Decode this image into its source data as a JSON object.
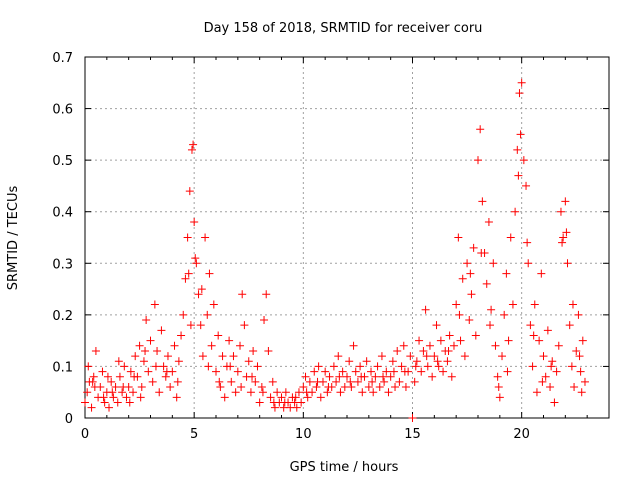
{
  "chart_data": {
    "type": "scatter",
    "title": "Day 158 of 2018, SRMTID for receiver coru",
    "xlabel": "GPS time / hours",
    "ylabel": "SRMTID / TECUs",
    "xlim": [
      0,
      24
    ],
    "ylim": [
      0,
      0.7
    ],
    "grid": true,
    "marker": "+",
    "color": "#ff0000",
    "xticks": [
      0,
      5,
      10,
      15,
      20
    ],
    "xtick_labels": [
      "0",
      "5",
      "10",
      "15",
      "20"
    ],
    "yticks": [
      0,
      0.1,
      0.2,
      0.3,
      0.4,
      0.5,
      0.6,
      0.7
    ],
    "ytick_labels": [
      "0",
      "0.1",
      "0.2",
      "0.3",
      "0.4",
      "0.5",
      "0.6",
      "0.7"
    ],
    "series": [
      {
        "name": "SRMTID",
        "points": [
          [
            0.0,
            0.03
          ],
          [
            0.1,
            0.05
          ],
          [
            0.2,
            0.07
          ],
          [
            0.3,
            0.02
          ],
          [
            0.4,
            0.08
          ],
          [
            0.5,
            0.13
          ],
          [
            0.6,
            0.04
          ],
          [
            0.7,
            0.06
          ],
          [
            0.8,
            0.09
          ],
          [
            0.9,
            0.03
          ],
          [
            1.0,
            0.05
          ],
          [
            1.1,
            0.02
          ],
          [
            1.2,
            0.07
          ],
          [
            1.3,
            0.04
          ],
          [
            1.4,
            0.06
          ],
          [
            1.5,
            0.03
          ],
          [
            1.6,
            0.08
          ],
          [
            1.7,
            0.05
          ],
          [
            1.8,
            0.1
          ],
          [
            1.9,
            0.04
          ],
          [
            2.0,
            0.06
          ],
          [
            2.1,
            0.09
          ],
          [
            2.2,
            0.05
          ],
          [
            2.3,
            0.12
          ],
          [
            2.4,
            0.08
          ],
          [
            2.5,
            0.14
          ],
          [
            2.6,
            0.06
          ],
          [
            2.7,
            0.11
          ],
          [
            2.8,
            0.19
          ],
          [
            2.9,
            0.09
          ],
          [
            3.0,
            0.15
          ],
          [
            3.1,
            0.07
          ],
          [
            3.2,
            0.22
          ],
          [
            3.3,
            0.13
          ],
          [
            3.4,
            0.05
          ],
          [
            3.5,
            0.17
          ],
          [
            3.6,
            0.1
          ],
          [
            3.7,
            0.08
          ],
          [
            3.8,
            0.12
          ],
          [
            3.9,
            0.06
          ],
          [
            4.0,
            0.09
          ],
          [
            4.1,
            0.14
          ],
          [
            4.2,
            0.04
          ],
          [
            4.3,
            0.11
          ],
          [
            4.4,
            0.16
          ],
          [
            4.5,
            0.2
          ],
          [
            4.6,
            0.27
          ],
          [
            4.7,
            0.35
          ],
          [
            4.8,
            0.44
          ],
          [
            4.9,
            0.52
          ],
          [
            5.0,
            0.38
          ],
          [
            5.1,
            0.3
          ],
          [
            5.2,
            0.24
          ],
          [
            5.3,
            0.18
          ],
          [
            5.4,
            0.12
          ],
          [
            5.5,
            0.35
          ],
          [
            5.6,
            0.2
          ],
          [
            5.7,
            0.28
          ],
          [
            5.8,
            0.14
          ],
          [
            5.9,
            0.22
          ],
          [
            6.0,
            0.09
          ],
          [
            6.1,
            0.16
          ],
          [
            6.2,
            0.06
          ],
          [
            6.3,
            0.12
          ],
          [
            6.4,
            0.04
          ],
          [
            6.5,
            0.1
          ],
          [
            6.6,
            0.15
          ],
          [
            6.7,
            0.07
          ],
          [
            6.8,
            0.12
          ],
          [
            6.9,
            0.05
          ],
          [
            7.0,
            0.09
          ],
          [
            7.1,
            0.14
          ],
          [
            7.2,
            0.24
          ],
          [
            7.3,
            0.18
          ],
          [
            7.4,
            0.08
          ],
          [
            7.5,
            0.11
          ],
          [
            7.6,
            0.05
          ],
          [
            7.7,
            0.13
          ],
          [
            7.8,
            0.07
          ],
          [
            7.9,
            0.1
          ],
          [
            8.0,
            0.03
          ],
          [
            8.1,
            0.06
          ],
          [
            8.2,
            0.19
          ],
          [
            8.3,
            0.24
          ],
          [
            8.4,
            0.13
          ],
          [
            8.5,
            0.04
          ],
          [
            8.6,
            0.07
          ],
          [
            8.7,
            0.02
          ],
          [
            8.8,
            0.05
          ],
          [
            8.9,
            0.03
          ],
          [
            9.0,
            0.04
          ],
          [
            9.1,
            0.02
          ],
          [
            9.2,
            0.05
          ],
          [
            9.3,
            0.03
          ],
          [
            9.4,
            0.02
          ],
          [
            9.5,
            0.04
          ],
          [
            9.6,
            0.03
          ],
          [
            9.7,
            0.02
          ],
          [
            9.8,
            0.05
          ],
          [
            9.9,
            0.03
          ],
          [
            10.0,
            0.06
          ],
          [
            10.1,
            0.08
          ],
          [
            10.2,
            0.04
          ],
          [
            10.3,
            0.07
          ],
          [
            10.4,
            0.05
          ],
          [
            10.5,
            0.09
          ],
          [
            10.6,
            0.06
          ],
          [
            10.7,
            0.1
          ],
          [
            10.8,
            0.04
          ],
          [
            10.9,
            0.07
          ],
          [
            11.0,
            0.09
          ],
          [
            11.1,
            0.05
          ],
          [
            11.2,
            0.08
          ],
          [
            11.3,
            0.06
          ],
          [
            11.4,
            0.1
          ],
          [
            11.5,
            0.07
          ],
          [
            11.6,
            0.12
          ],
          [
            11.7,
            0.05
          ],
          [
            11.8,
            0.09
          ],
          [
            11.9,
            0.06
          ],
          [
            12.0,
            0.08
          ],
          [
            12.1,
            0.11
          ],
          [
            12.2,
            0.06
          ],
          [
            12.3,
            0.14
          ],
          [
            12.4,
            0.09
          ],
          [
            12.5,
            0.07
          ],
          [
            12.6,
            0.1
          ],
          [
            12.7,
            0.05
          ],
          [
            12.8,
            0.08
          ],
          [
            12.9,
            0.11
          ],
          [
            13.0,
            0.06
          ],
          [
            13.1,
            0.09
          ],
          [
            13.2,
            0.05
          ],
          [
            13.3,
            0.08
          ],
          [
            13.4,
            0.1
          ],
          [
            13.5,
            0.06
          ],
          [
            13.6,
            0.12
          ],
          [
            13.7,
            0.07
          ],
          [
            13.8,
            0.09
          ],
          [
            13.9,
            0.05
          ],
          [
            14.0,
            0.08
          ],
          [
            14.1,
            0.11
          ],
          [
            14.2,
            0.06
          ],
          [
            14.3,
            0.13
          ],
          [
            14.4,
            0.07
          ],
          [
            14.5,
            0.1
          ],
          [
            14.6,
            0.14
          ],
          [
            14.7,
            0.06
          ],
          [
            14.8,
            0.09
          ],
          [
            14.9,
            0.12
          ],
          [
            15.0,
            0.0
          ],
          [
            15.1,
            0.07
          ],
          [
            15.2,
            0.11
          ],
          [
            15.3,
            0.15
          ],
          [
            15.4,
            0.09
          ],
          [
            15.5,
            0.13
          ],
          [
            15.6,
            0.21
          ],
          [
            15.7,
            0.1
          ],
          [
            15.8,
            0.14
          ],
          [
            15.9,
            0.08
          ],
          [
            16.0,
            0.12
          ],
          [
            16.1,
            0.18
          ],
          [
            16.2,
            0.1
          ],
          [
            16.3,
            0.15
          ],
          [
            16.4,
            0.09
          ],
          [
            16.5,
            0.13
          ],
          [
            16.6,
            0.11
          ],
          [
            16.7,
            0.16
          ],
          [
            16.8,
            0.08
          ],
          [
            16.9,
            0.14
          ],
          [
            17.0,
            0.22
          ],
          [
            17.1,
            0.35
          ],
          [
            17.2,
            0.15
          ],
          [
            17.3,
            0.27
          ],
          [
            17.4,
            0.12
          ],
          [
            17.5,
            0.3
          ],
          [
            17.6,
            0.19
          ],
          [
            17.7,
            0.24
          ],
          [
            17.8,
            0.33
          ],
          [
            17.9,
            0.16
          ],
          [
            18.0,
            0.5
          ],
          [
            18.1,
            0.56
          ],
          [
            18.2,
            0.42
          ],
          [
            18.3,
            0.32
          ],
          [
            18.4,
            0.26
          ],
          [
            18.5,
            0.38
          ],
          [
            18.6,
            0.21
          ],
          [
            18.7,
            0.3
          ],
          [
            18.8,
            0.14
          ],
          [
            18.9,
            0.08
          ],
          [
            19.0,
            0.04
          ],
          [
            19.1,
            0.12
          ],
          [
            19.2,
            0.2
          ],
          [
            19.3,
            0.28
          ],
          [
            19.4,
            0.15
          ],
          [
            19.5,
            0.35
          ],
          [
            19.6,
            0.22
          ],
          [
            19.7,
            0.4
          ],
          [
            19.8,
            0.52
          ],
          [
            19.9,
            0.63
          ],
          [
            20.0,
            0.65
          ],
          [
            20.1,
            0.5
          ],
          [
            20.2,
            0.45
          ],
          [
            20.3,
            0.3
          ],
          [
            20.4,
            0.18
          ],
          [
            20.5,
            0.1
          ],
          [
            20.6,
            0.22
          ],
          [
            20.7,
            0.05
          ],
          [
            20.8,
            0.15
          ],
          [
            20.9,
            0.28
          ],
          [
            21.0,
            0.12
          ],
          [
            21.1,
            0.08
          ],
          [
            21.2,
            0.17
          ],
          [
            21.3,
            0.06
          ],
          [
            21.4,
            0.11
          ],
          [
            21.5,
            0.03
          ],
          [
            21.6,
            0.09
          ],
          [
            21.7,
            0.14
          ],
          [
            21.8,
            0.4
          ],
          [
            21.9,
            0.35
          ],
          [
            22.0,
            0.42
          ],
          [
            22.1,
            0.3
          ],
          [
            22.2,
            0.18
          ],
          [
            22.3,
            0.1
          ],
          [
            22.4,
            0.06
          ],
          [
            22.5,
            0.13
          ],
          [
            22.6,
            0.2
          ],
          [
            22.7,
            0.09
          ],
          [
            22.8,
            0.15
          ],
          [
            22.9,
            0.07
          ],
          [
            0.35,
            0.07
          ],
          [
            0.85,
            0.04
          ],
          [
            1.25,
            0.05
          ],
          [
            1.75,
            0.06
          ],
          [
            2.25,
            0.08
          ],
          [
            2.75,
            0.13
          ],
          [
            3.25,
            0.1
          ],
          [
            3.75,
            0.09
          ],
          [
            4.25,
            0.07
          ],
          [
            4.75,
            0.28
          ],
          [
            4.85,
            0.18
          ],
          [
            4.95,
            0.53
          ],
          [
            5.05,
            0.31
          ],
          [
            5.35,
            0.25
          ],
          [
            5.65,
            0.1
          ],
          [
            6.15,
            0.07
          ],
          [
            6.65,
            0.1
          ],
          [
            7.15,
            0.06
          ],
          [
            7.65,
            0.08
          ],
          [
            8.15,
            0.05
          ],
          [
            8.65,
            0.03
          ],
          [
            9.15,
            0.03
          ],
          [
            9.65,
            0.04
          ],
          [
            10.15,
            0.05
          ],
          [
            10.65,
            0.07
          ],
          [
            11.15,
            0.06
          ],
          [
            11.65,
            0.08
          ],
          [
            12.15,
            0.07
          ],
          [
            12.65,
            0.08
          ],
          [
            13.15,
            0.07
          ],
          [
            13.65,
            0.08
          ],
          [
            14.15,
            0.09
          ],
          [
            14.65,
            0.09
          ],
          [
            15.15,
            0.1
          ],
          [
            15.65,
            0.12
          ],
          [
            16.15,
            0.11
          ],
          [
            16.65,
            0.13
          ],
          [
            17.15,
            0.2
          ],
          [
            17.65,
            0.28
          ],
          [
            18.15,
            0.32
          ],
          [
            18.55,
            0.18
          ],
          [
            18.95,
            0.06
          ],
          [
            19.35,
            0.09
          ],
          [
            19.85,
            0.47
          ],
          [
            19.95,
            0.55
          ],
          [
            20.25,
            0.34
          ],
          [
            20.55,
            0.16
          ],
          [
            20.95,
            0.07
          ],
          [
            21.35,
            0.1
          ],
          [
            21.85,
            0.34
          ],
          [
            22.05,
            0.36
          ],
          [
            22.35,
            0.22
          ],
          [
            22.65,
            0.12
          ],
          [
            22.75,
            0.05
          ],
          [
            0.15,
            0.1
          ],
          [
            0.45,
            0.06
          ],
          [
            1.05,
            0.08
          ],
          [
            1.55,
            0.11
          ],
          [
            2.05,
            0.03
          ],
          [
            2.55,
            0.04
          ]
        ]
      }
    ]
  }
}
